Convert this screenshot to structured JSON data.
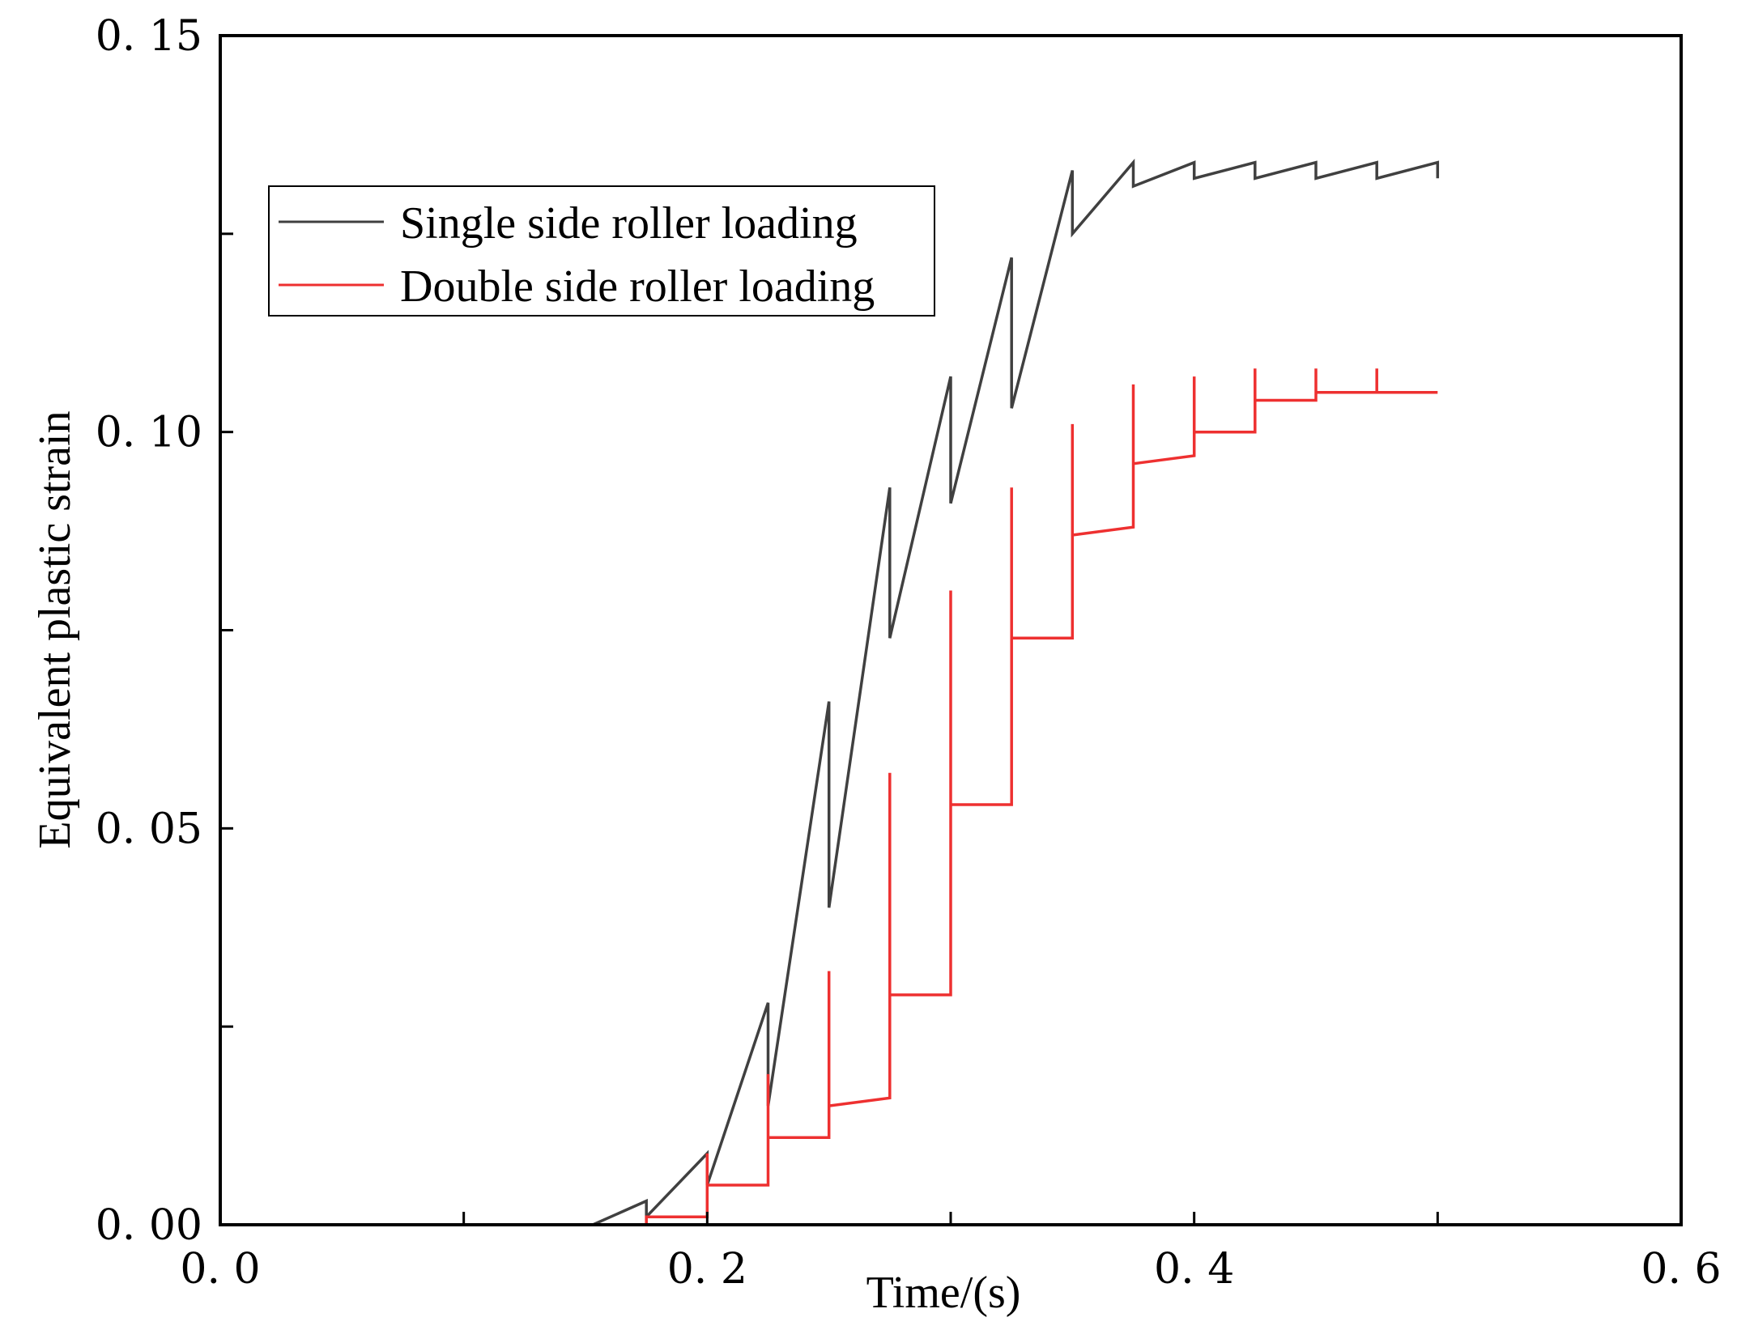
{
  "chart_data": {
    "type": "line",
    "title": "",
    "xlabel": "Time/(s)",
    "ylabel": "Equivalent plastic strain",
    "xlim": [
      0,
      0.6
    ],
    "ylim": [
      0,
      0.15
    ],
    "x_ticks": [
      {
        "value": 0.0,
        "label": "0. 0"
      },
      {
        "value": 0.1,
        "label": ""
      },
      {
        "value": 0.2,
        "label": "0. 2"
      },
      {
        "value": 0.3,
        "label": ""
      },
      {
        "value": 0.4,
        "label": "0. 4"
      },
      {
        "value": 0.5,
        "label": ""
      },
      {
        "value": 0.6,
        "label": "0. 6"
      }
    ],
    "y_ticks": [
      {
        "value": 0.0,
        "label": "0. 00"
      },
      {
        "value": 0.025,
        "label": ""
      },
      {
        "value": 0.05,
        "label": "0. 05"
      },
      {
        "value": 0.075,
        "label": ""
      },
      {
        "value": 0.1,
        "label": "0. 10"
      },
      {
        "value": 0.125,
        "label": ""
      },
      {
        "value": 0.15,
        "label": "0. 15"
      }
    ],
    "grid": false,
    "legend_position": "top-left",
    "series": [
      {
        "name": "Single side roller loading",
        "color": "#404040",
        "x": [
          0,
          0.138,
          0.153,
          0.175,
          0.175,
          0.2,
          0.2,
          0.225,
          0.225,
          0.25,
          0.25,
          0.275,
          0.275,
          0.3,
          0.3,
          0.325,
          0.325,
          0.35,
          0.35,
          0.375,
          0.375,
          0.4,
          0.4,
          0.425,
          0.425,
          0.45,
          0.45,
          0.475,
          0.475,
          0.5,
          0.5
        ],
        "y": [
          0,
          0,
          0,
          0.003,
          0.001,
          0.009,
          0.005,
          0.028,
          0.015,
          0.066,
          0.04,
          0.093,
          0.074,
          0.107,
          0.091,
          0.122,
          0.103,
          0.133,
          0.125,
          0.134,
          0.131,
          0.134,
          0.132,
          0.134,
          0.132,
          0.134,
          0.132,
          0.134,
          0.132,
          0.134,
          0.132
        ]
      },
      {
        "name": "Double side roller loading",
        "color": "#ee3030",
        "x": [
          0,
          0.175,
          0.175,
          0.2,
          0.2,
          0.2,
          0.225,
          0.225,
          0.225,
          0.25,
          0.25,
          0.25,
          0.275,
          0.275,
          0.275,
          0.3,
          0.3,
          0.3,
          0.325,
          0.325,
          0.325,
          0.35,
          0.35,
          0.35,
          0.375,
          0.375,
          0.375,
          0.4,
          0.4,
          0.4,
          0.425,
          0.425,
          0.425,
          0.45,
          0.45,
          0.45,
          0.475,
          0.475,
          0.475,
          0.5
        ],
        "y": [
          0,
          0,
          0.001,
          0.001,
          0.009,
          0.005,
          0.005,
          0.019,
          0.011,
          0.011,
          0.032,
          0.015,
          0.016,
          0.057,
          0.029,
          0.029,
          0.08,
          0.053,
          0.053,
          0.093,
          0.074,
          0.074,
          0.101,
          0.087,
          0.088,
          0.106,
          0.096,
          0.097,
          0.107,
          0.1,
          0.1,
          0.108,
          0.104,
          0.104,
          0.108,
          0.105,
          0.105,
          0.108,
          0.105,
          0.105
        ]
      }
    ]
  }
}
